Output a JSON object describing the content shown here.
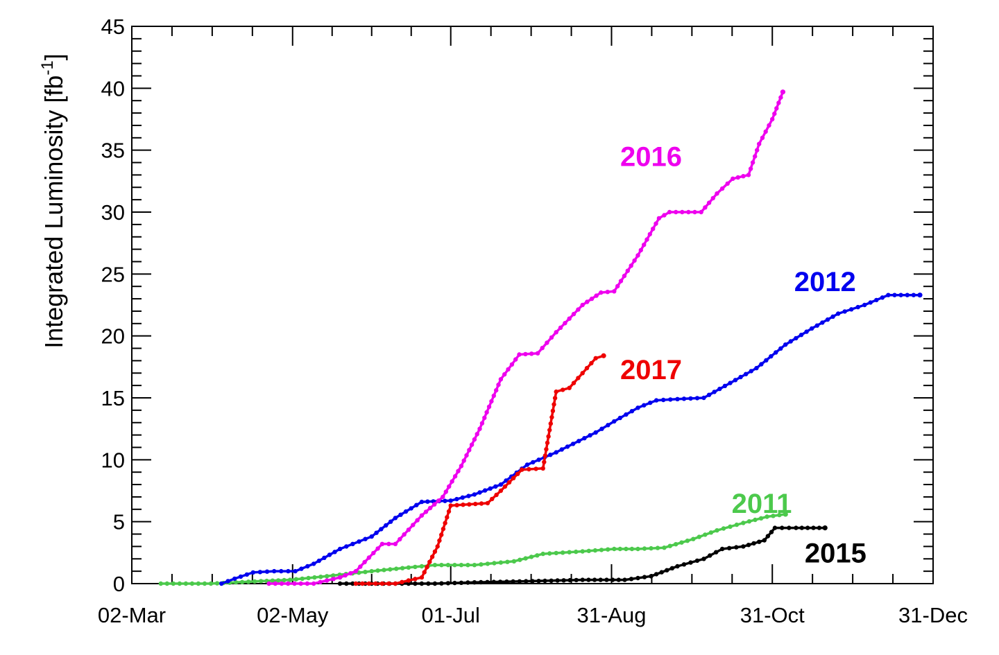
{
  "chart_data": {
    "type": "line",
    "title": "",
    "xlabel": "",
    "ylabel": "Integrated Luminosity [fb",
    "ylabel_superscript": "-1",
    "ylabel_suffix": "]",
    "x_unit": "day-of-year",
    "xlim": [
      "02-Mar",
      "31-Dec"
    ],
    "ylim": [
      0,
      45
    ],
    "grid": false,
    "legend": "inline labels",
    "x_tick_labels": [
      "02-Mar",
      "02-May",
      "01-Jul",
      "31-Aug",
      "31-Oct",
      "31-Dec"
    ],
    "x_tick_dates": [
      "03-02",
      "05-02",
      "07-01",
      "08-31",
      "10-31",
      "12-31"
    ],
    "y_ticks": [
      0,
      5,
      10,
      15,
      20,
      25,
      30,
      35,
      40,
      45
    ],
    "series": [
      {
        "name": "2011",
        "color": "#4cc94c",
        "points": [
          [
            "03-13",
            0
          ],
          [
            "04-01",
            0
          ],
          [
            "04-20",
            0.2
          ],
          [
            "05-01",
            0.3
          ],
          [
            "05-15",
            0.6
          ],
          [
            "06-01",
            1.0
          ],
          [
            "06-15",
            1.3
          ],
          [
            "06-25",
            1.5
          ],
          [
            "07-10",
            1.5
          ],
          [
            "07-25",
            1.8
          ],
          [
            "08-05",
            2.4
          ],
          [
            "08-20",
            2.6
          ],
          [
            "09-01",
            2.8
          ],
          [
            "09-10",
            2.8
          ],
          [
            "09-20",
            2.9
          ],
          [
            "10-01",
            3.6
          ],
          [
            "10-10",
            4.3
          ],
          [
            "10-20",
            4.9
          ],
          [
            "10-29",
            5.4
          ],
          [
            "11-05",
            5.6
          ]
        ]
      },
      {
        "name": "2012",
        "color": "#0000ee",
        "points": [
          [
            "04-05",
            0
          ],
          [
            "04-10",
            0.4
          ],
          [
            "04-17",
            0.9
          ],
          [
            "04-25",
            1.0
          ],
          [
            "05-03",
            1.0
          ],
          [
            "05-10",
            1.6
          ],
          [
            "05-20",
            2.8
          ],
          [
            "06-01",
            3.8
          ],
          [
            "06-10",
            5.3
          ],
          [
            "06-20",
            6.6
          ],
          [
            "07-01",
            6.7
          ],
          [
            "07-10",
            7.2
          ],
          [
            "07-20",
            8.0
          ],
          [
            "07-30",
            9.6
          ],
          [
            "08-10",
            10.6
          ],
          [
            "08-25",
            12.2
          ],
          [
            "09-01",
            13.1
          ],
          [
            "09-10",
            14.2
          ],
          [
            "09-17",
            14.8
          ],
          [
            "09-25",
            14.9
          ],
          [
            "10-05",
            15.0
          ],
          [
            "10-15",
            16.2
          ],
          [
            "10-25",
            17.4
          ],
          [
            "11-05",
            19.3
          ],
          [
            "11-15",
            20.6
          ],
          [
            "11-25",
            21.8
          ],
          [
            "12-05",
            22.5
          ],
          [
            "12-14",
            23.3
          ],
          [
            "12-26",
            23.3
          ]
        ]
      },
      {
        "name": "2015",
        "color": "#000000",
        "points": [
          [
            "05-20",
            0
          ],
          [
            "06-01",
            0
          ],
          [
            "06-10",
            0
          ],
          [
            "06-25",
            0
          ],
          [
            "07-10",
            0.1
          ],
          [
            "08-01",
            0.2
          ],
          [
            "08-20",
            0.3
          ],
          [
            "09-05",
            0.3
          ],
          [
            "09-15",
            0.6
          ],
          [
            "09-25",
            1.4
          ],
          [
            "10-05",
            2.0
          ],
          [
            "10-12",
            2.8
          ],
          [
            "10-20",
            3.0
          ],
          [
            "10-28",
            3.5
          ],
          [
            "11-01",
            4.5
          ],
          [
            "11-09",
            4.5
          ],
          [
            "11-20",
            4.5
          ]
        ]
      },
      {
        "name": "2016",
        "color": "#ee00ee",
        "points": [
          [
            "04-23",
            0
          ],
          [
            "05-10",
            0
          ],
          [
            "05-20",
            0.5
          ],
          [
            "05-26",
            1.0
          ],
          [
            "06-05",
            3.2
          ],
          [
            "06-10",
            3.2
          ],
          [
            "06-20",
            5.5
          ],
          [
            "06-28",
            7.0
          ],
          [
            "07-05",
            9.5
          ],
          [
            "07-12",
            12.5
          ],
          [
            "07-20",
            16.5
          ],
          [
            "07-27",
            18.5
          ],
          [
            "08-03",
            18.6
          ],
          [
            "08-10",
            20.3
          ],
          [
            "08-20",
            22.5
          ],
          [
            "08-27",
            23.5
          ],
          [
            "09-01",
            23.6
          ],
          [
            "09-10",
            26.5
          ],
          [
            "09-18",
            29.5
          ],
          [
            "09-22",
            30.0
          ],
          [
            "10-04",
            30.0
          ],
          [
            "10-10",
            31.5
          ],
          [
            "10-16",
            32.7
          ],
          [
            "10-22",
            33.0
          ],
          [
            "10-26",
            35.5
          ],
          [
            "10-31",
            37.5
          ],
          [
            "11-04",
            39.7
          ]
        ]
      },
      {
        "name": "2017",
        "color": "#ee0000",
        "points": [
          [
            "05-26",
            0
          ],
          [
            "06-10",
            0
          ],
          [
            "06-20",
            0.5
          ],
          [
            "06-26",
            3.0
          ],
          [
            "07-01",
            6.3
          ],
          [
            "07-15",
            6.5
          ],
          [
            "07-20",
            7.5
          ],
          [
            "07-28",
            9.2
          ],
          [
            "08-05",
            9.3
          ],
          [
            "08-10",
            15.5
          ],
          [
            "08-15",
            15.8
          ],
          [
            "08-20",
            17.0
          ],
          [
            "08-25",
            18.2
          ],
          [
            "08-28",
            18.4
          ]
        ]
      }
    ],
    "labels": [
      {
        "series": "2016",
        "text": "2016",
        "at": [
          "09-15",
          34.5
        ]
      },
      {
        "series": "2012",
        "text": "2012",
        "at": [
          "11-20",
          24.4
        ]
      },
      {
        "series": "2017",
        "text": "2017",
        "at": [
          "09-15",
          17.3
        ]
      },
      {
        "series": "2011",
        "text": "2011",
        "at": [
          "10-27",
          6.5
        ]
      },
      {
        "series": "2015",
        "text": "2015",
        "at": [
          "11-24",
          2.5
        ]
      }
    ]
  }
}
